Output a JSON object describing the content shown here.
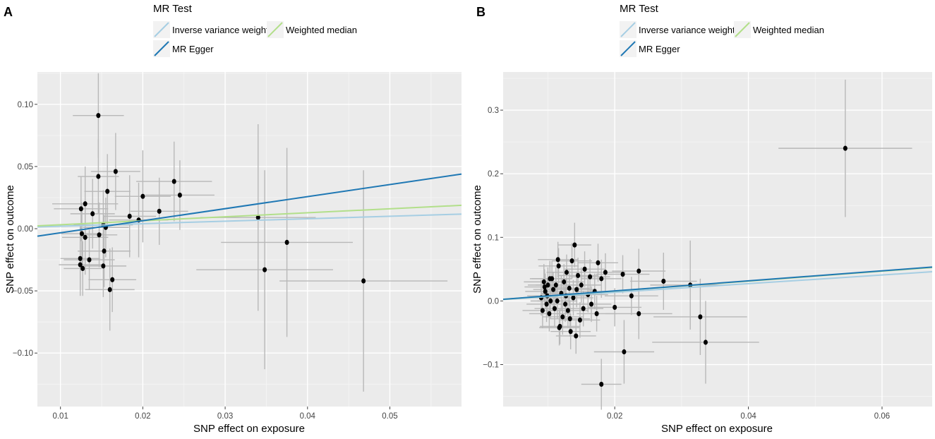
{
  "chart_data": [
    {
      "type": "scatter",
      "panel_label": "A",
      "legend_title": "MR Test",
      "legend_labels": [
        "Inverse variance weighted",
        "Weighted median",
        "MR Egger"
      ],
      "xlabel": "SNP effect on exposure",
      "ylabel": "SNP effect on outcome",
      "xlim": [
        0.0072,
        0.0587
      ],
      "ylim": [
        -0.143,
        0.126
      ],
      "xticks": [
        0.01,
        0.02,
        0.03,
        0.04,
        0.05
      ],
      "xtick_labels": [
        "0.01",
        "0.02",
        "0.03",
        "0.04",
        "0.05"
      ],
      "yticks": [
        0.1,
        0.05,
        0.0,
        -0.05,
        -0.1
      ],
      "ytick_labels": [
        "0.10",
        "0.05",
        "0.00",
        "−0.05",
        "−0.10"
      ],
      "lines": [
        {
          "name": "Inverse variance weighted",
          "color": "#a6cee3",
          "intercept": 0,
          "slope": 0.2
        },
        {
          "name": "Weighted median",
          "color": "#b2df8a",
          "intercept": 0,
          "slope": 0.32
        },
        {
          "name": "MR Egger",
          "color": "#1f78b4",
          "intercept": -0.013,
          "slope": 0.97
        }
      ],
      "points": [
        {
          "x": 0.0146,
          "y": 0.091,
          "xerr": 0.0031,
          "yerr": 0.034
        },
        {
          "x": 0.0146,
          "y": 0.042,
          "xerr": 0.0025,
          "yerr": 0.03
        },
        {
          "x": 0.0167,
          "y": 0.046,
          "xerr": 0.003,
          "yerr": 0.031
        },
        {
          "x": 0.0157,
          "y": 0.03,
          "xerr": 0.0028,
          "yerr": 0.03
        },
        {
          "x": 0.0238,
          "y": 0.038,
          "xerr": 0.0046,
          "yerr": 0.032
        },
        {
          "x": 0.0245,
          "y": 0.027,
          "xerr": 0.0042,
          "yerr": 0.028
        },
        {
          "x": 0.02,
          "y": 0.026,
          "xerr": 0.0034,
          "yerr": 0.037
        },
        {
          "x": 0.022,
          "y": 0.014,
          "xerr": 0.0035,
          "yerr": 0.027
        },
        {
          "x": 0.0184,
          "y": 0.01,
          "xerr": 0.0032,
          "yerr": 0.033
        },
        {
          "x": 0.0195,
          "y": 0.007,
          "xerr": 0.0036,
          "yerr": 0.03
        },
        {
          "x": 0.013,
          "y": 0.02,
          "xerr": 0.004,
          "yerr": 0.03
        },
        {
          "x": 0.0125,
          "y": 0.016,
          "xerr": 0.0033,
          "yerr": 0.026
        },
        {
          "x": 0.0139,
          "y": 0.012,
          "xerr": 0.0027,
          "yerr": 0.028
        },
        {
          "x": 0.0152,
          "y": 0.003,
          "xerr": 0.0036,
          "yerr": 0.028
        },
        {
          "x": 0.0155,
          "y": 0.001,
          "xerr": 0.0028,
          "yerr": 0.024
        },
        {
          "x": 0.0126,
          "y": -0.004,
          "xerr": 0.0025,
          "yerr": 0.025
        },
        {
          "x": 0.013,
          "y": -0.007,
          "xerr": 0.0028,
          "yerr": 0.03
        },
        {
          "x": 0.0147,
          "y": -0.005,
          "xerr": 0.0022,
          "yerr": 0.026
        },
        {
          "x": 0.0153,
          "y": -0.018,
          "xerr": 0.0032,
          "yerr": 0.029
        },
        {
          "x": 0.0124,
          "y": -0.024,
          "xerr": 0.0024,
          "yerr": 0.026
        },
        {
          "x": 0.0135,
          "y": -0.025,
          "xerr": 0.0031,
          "yerr": 0.024
        },
        {
          "x": 0.0124,
          "y": -0.029,
          "xerr": 0.0026,
          "yerr": 0.025
        },
        {
          "x": 0.0127,
          "y": -0.032,
          "xerr": 0.0023,
          "yerr": 0.022
        },
        {
          "x": 0.0152,
          "y": -0.03,
          "xerr": 0.0028,
          "yerr": 0.025
        },
        {
          "x": 0.0163,
          "y": -0.041,
          "xerr": 0.0029,
          "yerr": 0.026
        },
        {
          "x": 0.016,
          "y": -0.049,
          "xerr": 0.003,
          "yerr": 0.033
        },
        {
          "x": 0.034,
          "y": 0.009,
          "xerr": 0.007,
          "yerr": 0.075
        },
        {
          "x": 0.0375,
          "y": -0.011,
          "xerr": 0.008,
          "yerr": 0.076
        },
        {
          "x": 0.0348,
          "y": -0.033,
          "xerr": 0.0083,
          "yerr": 0.08
        },
        {
          "x": 0.0468,
          "y": -0.042,
          "xerr": 0.0102,
          "yerr": 0.089
        }
      ]
    },
    {
      "type": "scatter",
      "panel_label": "B",
      "legend_title": "MR Test",
      "legend_labels": [
        "Inverse variance weighted",
        "Weighted median",
        "MR Egger"
      ],
      "xlabel": "SNP effect on exposure",
      "ylabel": "SNP effect on outcome",
      "xlim": [
        0.0033,
        0.0675
      ],
      "ylim": [
        -0.166,
        0.36
      ],
      "xticks": [
        0.02,
        0.04,
        0.06
      ],
      "xtick_labels": [
        "0.02",
        "0.04",
        "0.06"
      ],
      "yticks": [
        0.3,
        0.2,
        0.1,
        0.0,
        -0.1
      ],
      "ytick_labels": [
        "0.3",
        "0.2",
        "0.1",
        "0.0",
        "−0.1"
      ],
      "lines": [
        {
          "name": "Inverse variance weighted",
          "color": "#a6cee3",
          "intercept": 0,
          "slope": 0.68
        },
        {
          "name": "Weighted median",
          "color": "#b2df8a",
          "intercept": 0,
          "slope": 0.78
        },
        {
          "name": "MR Egger",
          "color": "#1f78b4",
          "intercept": 0,
          "slope": 0.79
        }
      ],
      "points": [
        {
          "x": 0.0545,
          "y": 0.24,
          "xerr": 0.01,
          "yerr": 0.108
        },
        {
          "x": 0.018,
          "y": -0.131,
          "xerr": 0.003,
          "yerr": 0.04
        },
        {
          "x": 0.0214,
          "y": -0.08,
          "xerr": 0.0045,
          "yerr": 0.05
        },
        {
          "x": 0.0336,
          "y": -0.065,
          "xerr": 0.008,
          "yerr": 0.065
        },
        {
          "x": 0.0328,
          "y": -0.025,
          "xerr": 0.007,
          "yerr": 0.06
        },
        {
          "x": 0.0273,
          "y": 0.031,
          "xerr": 0.005,
          "yerr": 0.045
        },
        {
          "x": 0.0313,
          "y": 0.025,
          "xerr": 0.006,
          "yerr": 0.07
        },
        {
          "x": 0.0236,
          "y": 0.047,
          "xerr": 0.004,
          "yerr": 0.035
        },
        {
          "x": 0.0236,
          "y": -0.02,
          "xerr": 0.005,
          "yerr": 0.04
        },
        {
          "x": 0.0225,
          "y": 0.008,
          "xerr": 0.004,
          "yerr": 0.03
        },
        {
          "x": 0.0212,
          "y": 0.042,
          "xerr": 0.004,
          "yerr": 0.03
        },
        {
          "x": 0.02,
          "y": -0.01,
          "xerr": 0.004,
          "yerr": 0.03
        },
        {
          "x": 0.0186,
          "y": 0.045,
          "xerr": 0.003,
          "yerr": 0.03
        },
        {
          "x": 0.018,
          "y": 0.035,
          "xerr": 0.003,
          "yerr": 0.03
        },
        {
          "x": 0.0175,
          "y": 0.06,
          "xerr": 0.003,
          "yerr": 0.03
        },
        {
          "x": 0.017,
          "y": 0.015,
          "xerr": 0.003,
          "yerr": 0.028
        },
        {
          "x": 0.0165,
          "y": -0.005,
          "xerr": 0.003,
          "yerr": 0.028
        },
        {
          "x": 0.016,
          "y": 0.01,
          "xerr": 0.003,
          "yerr": 0.028
        },
        {
          "x": 0.0155,
          "y": 0.05,
          "xerr": 0.003,
          "yerr": 0.028
        },
        {
          "x": 0.015,
          "y": 0.025,
          "xerr": 0.003,
          "yerr": 0.028
        },
        {
          "x": 0.0148,
          "y": -0.03,
          "xerr": 0.003,
          "yerr": 0.028
        },
        {
          "x": 0.0145,
          "y": 0.04,
          "xerr": 0.003,
          "yerr": 0.028
        },
        {
          "x": 0.0142,
          "y": -0.055,
          "xerr": 0.003,
          "yerr": 0.028
        },
        {
          "x": 0.014,
          "y": 0.088,
          "xerr": 0.0025,
          "yerr": 0.035
        },
        {
          "x": 0.0138,
          "y": 0.005,
          "xerr": 0.003,
          "yerr": 0.028
        },
        {
          "x": 0.0136,
          "y": 0.063,
          "xerr": 0.003,
          "yerr": 0.028
        },
        {
          "x": 0.0134,
          "y": -0.048,
          "xerr": 0.003,
          "yerr": 0.028
        },
        {
          "x": 0.0132,
          "y": 0.02,
          "xerr": 0.003,
          "yerr": 0.028
        },
        {
          "x": 0.013,
          "y": -0.015,
          "xerr": 0.003,
          "yerr": 0.028
        },
        {
          "x": 0.0128,
          "y": 0.045,
          "xerr": 0.003,
          "yerr": 0.028
        },
        {
          "x": 0.0126,
          "y": -0.005,
          "xerr": 0.003,
          "yerr": 0.028
        },
        {
          "x": 0.0124,
          "y": 0.03,
          "xerr": 0.003,
          "yerr": 0.028
        },
        {
          "x": 0.0122,
          "y": -0.025,
          "xerr": 0.003,
          "yerr": 0.028
        },
        {
          "x": 0.012,
          "y": 0.012,
          "xerr": 0.003,
          "yerr": 0.028
        },
        {
          "x": 0.0118,
          "y": -0.04,
          "xerr": 0.003,
          "yerr": 0.028
        },
        {
          "x": 0.0116,
          "y": 0.055,
          "xerr": 0.003,
          "yerr": 0.028
        },
        {
          "x": 0.0114,
          "y": 0.0,
          "xerr": 0.003,
          "yerr": 0.028
        },
        {
          "x": 0.0112,
          "y": 0.025,
          "xerr": 0.003,
          "yerr": 0.028
        },
        {
          "x": 0.011,
          "y": -0.012,
          "xerr": 0.003,
          "yerr": 0.028
        },
        {
          "x": 0.0108,
          "y": 0.018,
          "xerr": 0.003,
          "yerr": 0.028
        },
        {
          "x": 0.0106,
          "y": 0.035,
          "xerr": 0.003,
          "yerr": 0.028
        },
        {
          "x": 0.0104,
          "y": 0.0,
          "xerr": 0.003,
          "yerr": 0.028
        },
        {
          "x": 0.0102,
          "y": -0.02,
          "xerr": 0.003,
          "yerr": 0.028
        },
        {
          "x": 0.01,
          "y": 0.025,
          "xerr": 0.003,
          "yerr": 0.028
        },
        {
          "x": 0.0098,
          "y": -0.005,
          "xerr": 0.003,
          "yerr": 0.028
        },
        {
          "x": 0.0096,
          "y": 0.015,
          "xerr": 0.003,
          "yerr": 0.028
        },
        {
          "x": 0.0094,
          "y": 0.03,
          "xerr": 0.003,
          "yerr": 0.028
        },
        {
          "x": 0.0092,
          "y": -0.015,
          "xerr": 0.003,
          "yerr": 0.028
        },
        {
          "x": 0.009,
          "y": 0.005,
          "xerr": 0.003,
          "yerr": 0.028
        },
        {
          "x": 0.0115,
          "y": 0.065,
          "xerr": 0.003,
          "yerr": 0.028
        },
        {
          "x": 0.0117,
          "y": -0.042,
          "xerr": 0.003,
          "yerr": 0.028
        },
        {
          "x": 0.0127,
          "y": 0.008,
          "xerr": 0.003,
          "yerr": 0.028
        },
        {
          "x": 0.0133,
          "y": -0.028,
          "xerr": 0.003,
          "yerr": 0.028
        },
        {
          "x": 0.0143,
          "y": 0.018,
          "xerr": 0.003,
          "yerr": 0.028
        },
        {
          "x": 0.0153,
          "y": -0.012,
          "xerr": 0.003,
          "yerr": 0.028
        },
        {
          "x": 0.0163,
          "y": 0.038,
          "xerr": 0.003,
          "yerr": 0.028
        },
        {
          "x": 0.0173,
          "y": -0.02,
          "xerr": 0.003,
          "yerr": 0.028
        },
        {
          "x": 0.0095,
          "y": 0.022,
          "xerr": 0.003,
          "yerr": 0.028
        },
        {
          "x": 0.0099,
          "y": 0.008,
          "xerr": 0.003,
          "yerr": 0.028
        },
        {
          "x": 0.0103,
          "y": 0.035,
          "xerr": 0.003,
          "yerr": 0.028
        }
      ]
    }
  ]
}
